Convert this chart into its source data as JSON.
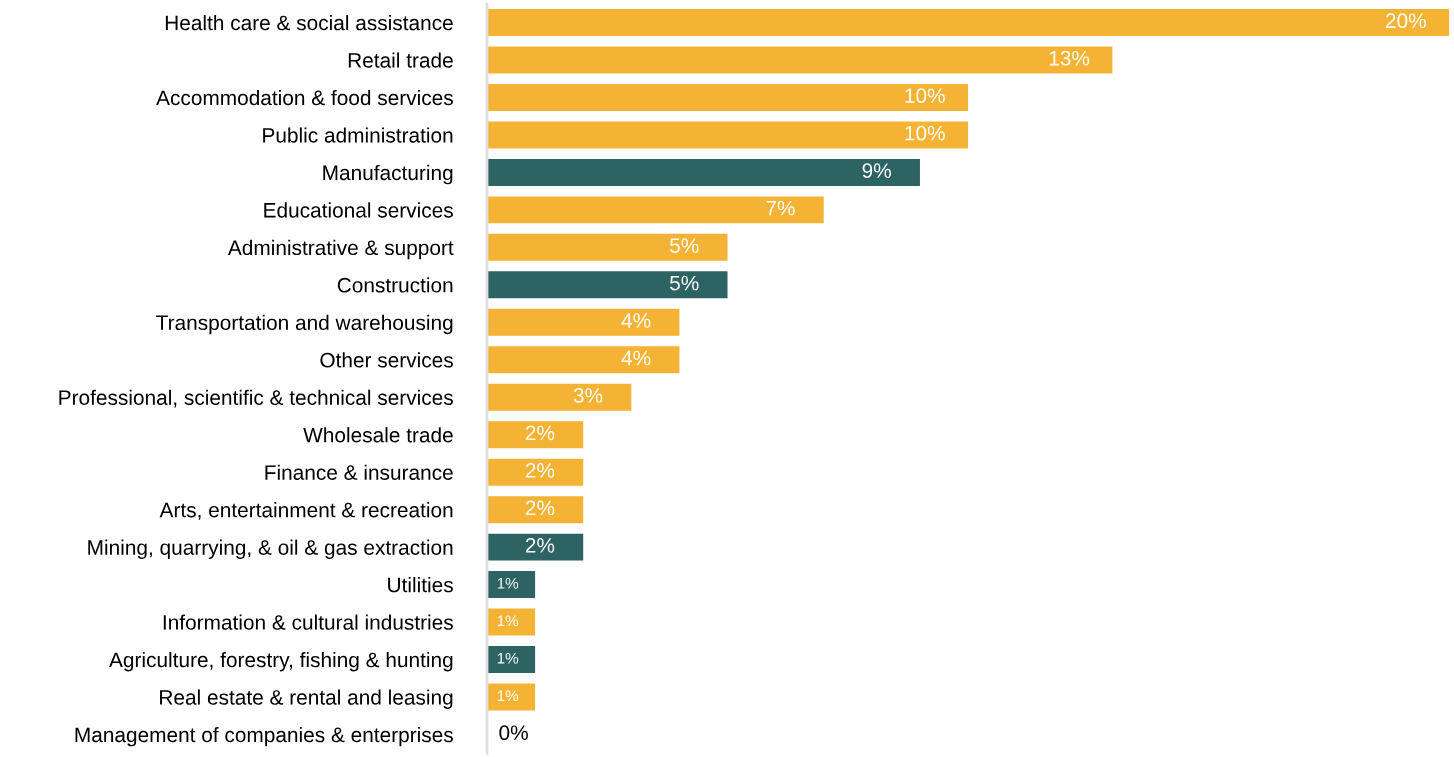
{
  "chart_data": {
    "type": "bar",
    "orientation": "horizontal",
    "categories": [
      "Health care & social assistance",
      "Retail trade",
      "Accommodation & food services",
      "Public administration",
      "Manufacturing",
      "Educational services",
      "Administrative & support",
      "Construction",
      "Transportation and warehousing",
      "Other services",
      "Professional, scientific & technical services",
      "Wholesale trade",
      "Finance & insurance",
      "Arts, entertainment & recreation",
      "Mining, quarrying, & oil & gas extraction",
      "Utilities",
      "Information & cultural industries",
      "Agriculture, forestry, fishing & hunting",
      "Real estate & rental and leasing",
      "Management of companies & enterprises"
    ],
    "values": [
      20,
      13,
      10,
      10,
      9,
      7,
      5,
      5,
      4,
      4,
      3,
      2,
      2,
      2,
      2,
      1,
      1,
      1,
      1,
      0
    ],
    "colors": [
      "#f5b335",
      "#f5b335",
      "#f5b335",
      "#f5b335",
      "#2d6463",
      "#f5b335",
      "#f5b335",
      "#2d6463",
      "#f5b335",
      "#f5b335",
      "#f5b335",
      "#f5b335",
      "#f5b335",
      "#f5b335",
      "#2d6463",
      "#2d6463",
      "#f5b335",
      "#2d6463",
      "#f5b335",
      "#f5b335"
    ],
    "value_labels": [
      "20%",
      "13%",
      "10%",
      "10%",
      "9%",
      "7%",
      "5%",
      "5%",
      "4%",
      "4%",
      "3%",
      "2%",
      "2%",
      "2%",
      "2%",
      "1%",
      "1%",
      "1%",
      "1%",
      "0%"
    ],
    "grid": false,
    "legend": false
  }
}
